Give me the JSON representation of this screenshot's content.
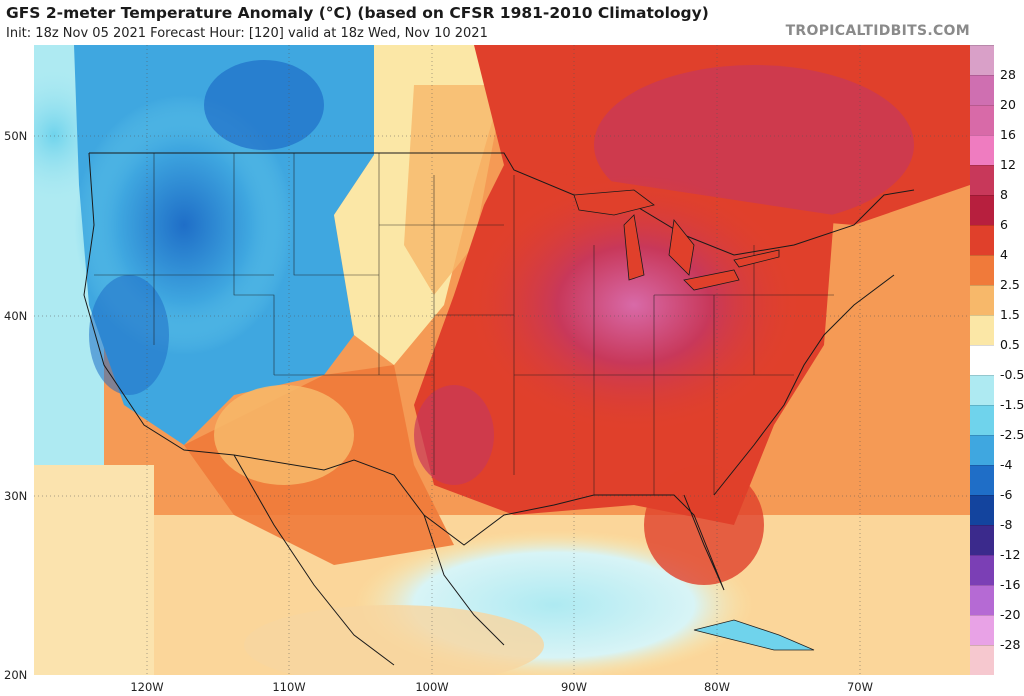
{
  "header": {
    "title": "GFS 2-meter Temperature Anomaly (°C) (based on CFSR 1981-2010 Climatology)",
    "subtitle": "Init: 18z Nov 05 2021   Forecast Hour: [120]   valid at 18z Wed, Nov 10 2021",
    "credit": "TROPICALTIDBITS.COM"
  },
  "map": {
    "lat_labels": [
      "50N",
      "40N",
      "30N",
      "20N"
    ],
    "lon_labels": [
      "120W",
      "110W",
      "100W",
      "90W",
      "80W",
      "70W"
    ]
  },
  "colorbar": {
    "labels": [
      "28",
      "20",
      "16",
      "12",
      "8",
      "6",
      "4",
      "2.5",
      "1.5",
      "0.5",
      "-0.5",
      "-1.5",
      "-2.5",
      "-4",
      "-6",
      "-8",
      "-12",
      "-16",
      "-20",
      "-28"
    ],
    "colors": [
      "#d9a0c8",
      "#cf6fb1",
      "#d86aa8",
      "#ef7cc0",
      "#c8385a",
      "#b71f3e",
      "#e0402b",
      "#f07a3a",
      "#f7b86a",
      "#fbe7a6",
      "#ffffff",
      "#aeeaf2",
      "#6fd3ec",
      "#3fa7e0",
      "#1f6ec7",
      "#13449e",
      "#3b2a8c",
      "#7b3fb5",
      "#b56ad4",
      "#e8a2e6",
      "#f6c8cf"
    ]
  }
}
